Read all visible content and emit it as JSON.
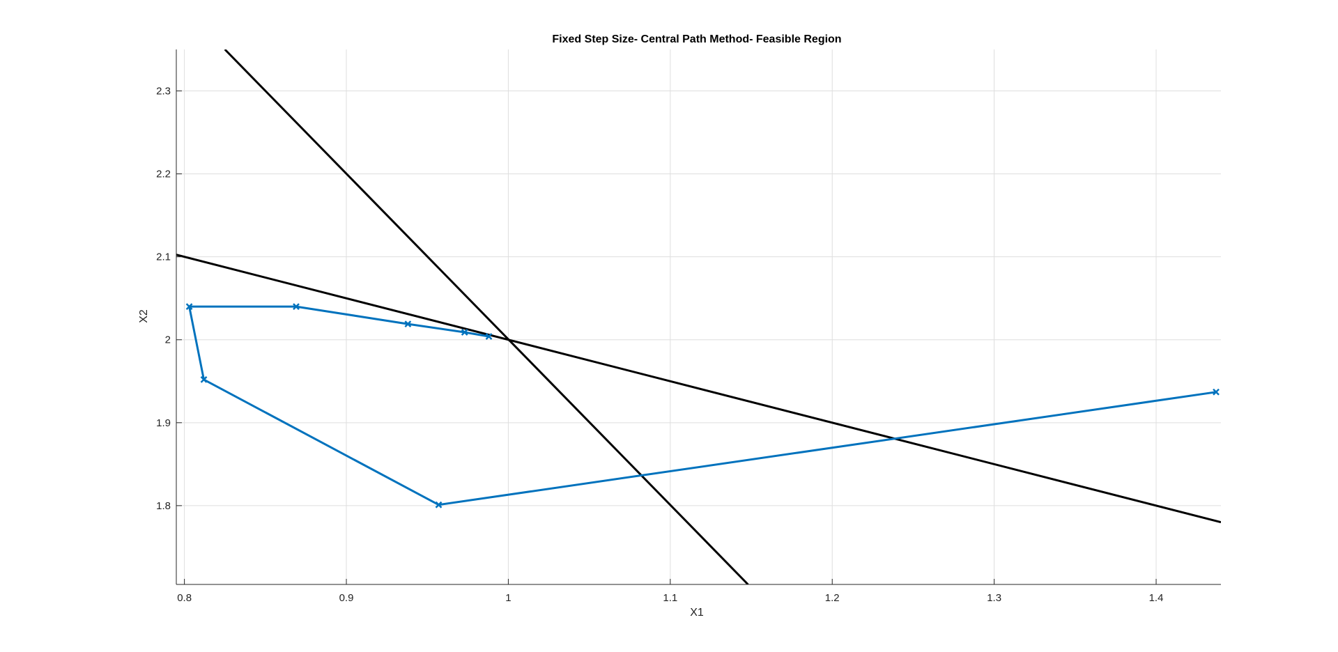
{
  "chart_data": {
    "type": "line",
    "title": "Fixed Step Size- Central Path Method- Feasible Region",
    "xlabel": "X1",
    "ylabel": "X2",
    "xlim": [
      0.795,
      1.44
    ],
    "ylim": [
      1.705,
      2.35
    ],
    "grid": true,
    "xticks": [
      0.8,
      0.9,
      1.0,
      1.1,
      1.2,
      1.3,
      1.4
    ],
    "xtick_labels": [
      "0.8",
      "0.9",
      "1",
      "1.1",
      "1.2",
      "1.3",
      "1.4"
    ],
    "yticks": [
      1.8,
      1.9,
      2.0,
      2.1,
      2.2,
      2.3
    ],
    "ytick_labels": [
      "1.8",
      "1.9",
      "2",
      "2.1",
      "2.2",
      "2.3"
    ],
    "constraint_lines": [
      {
        "color": "#000000",
        "x": [
          0.825,
          1.148
        ],
        "y": [
          2.35,
          1.705
        ]
      },
      {
        "color": "#000000",
        "x": [
          0.795,
          1.44
        ],
        "y": [
          2.1025,
          1.78
        ]
      }
    ],
    "series": [
      {
        "color": "#0072BD",
        "marker": "x",
        "x": [
          1.437,
          0.957,
          0.812,
          0.803,
          0.869,
          0.938,
          0.973,
          0.988
        ],
        "y": [
          1.937,
          1.801,
          1.952,
          2.04,
          2.04,
          2.019,
          2.009,
          2.004
        ]
      }
    ]
  }
}
